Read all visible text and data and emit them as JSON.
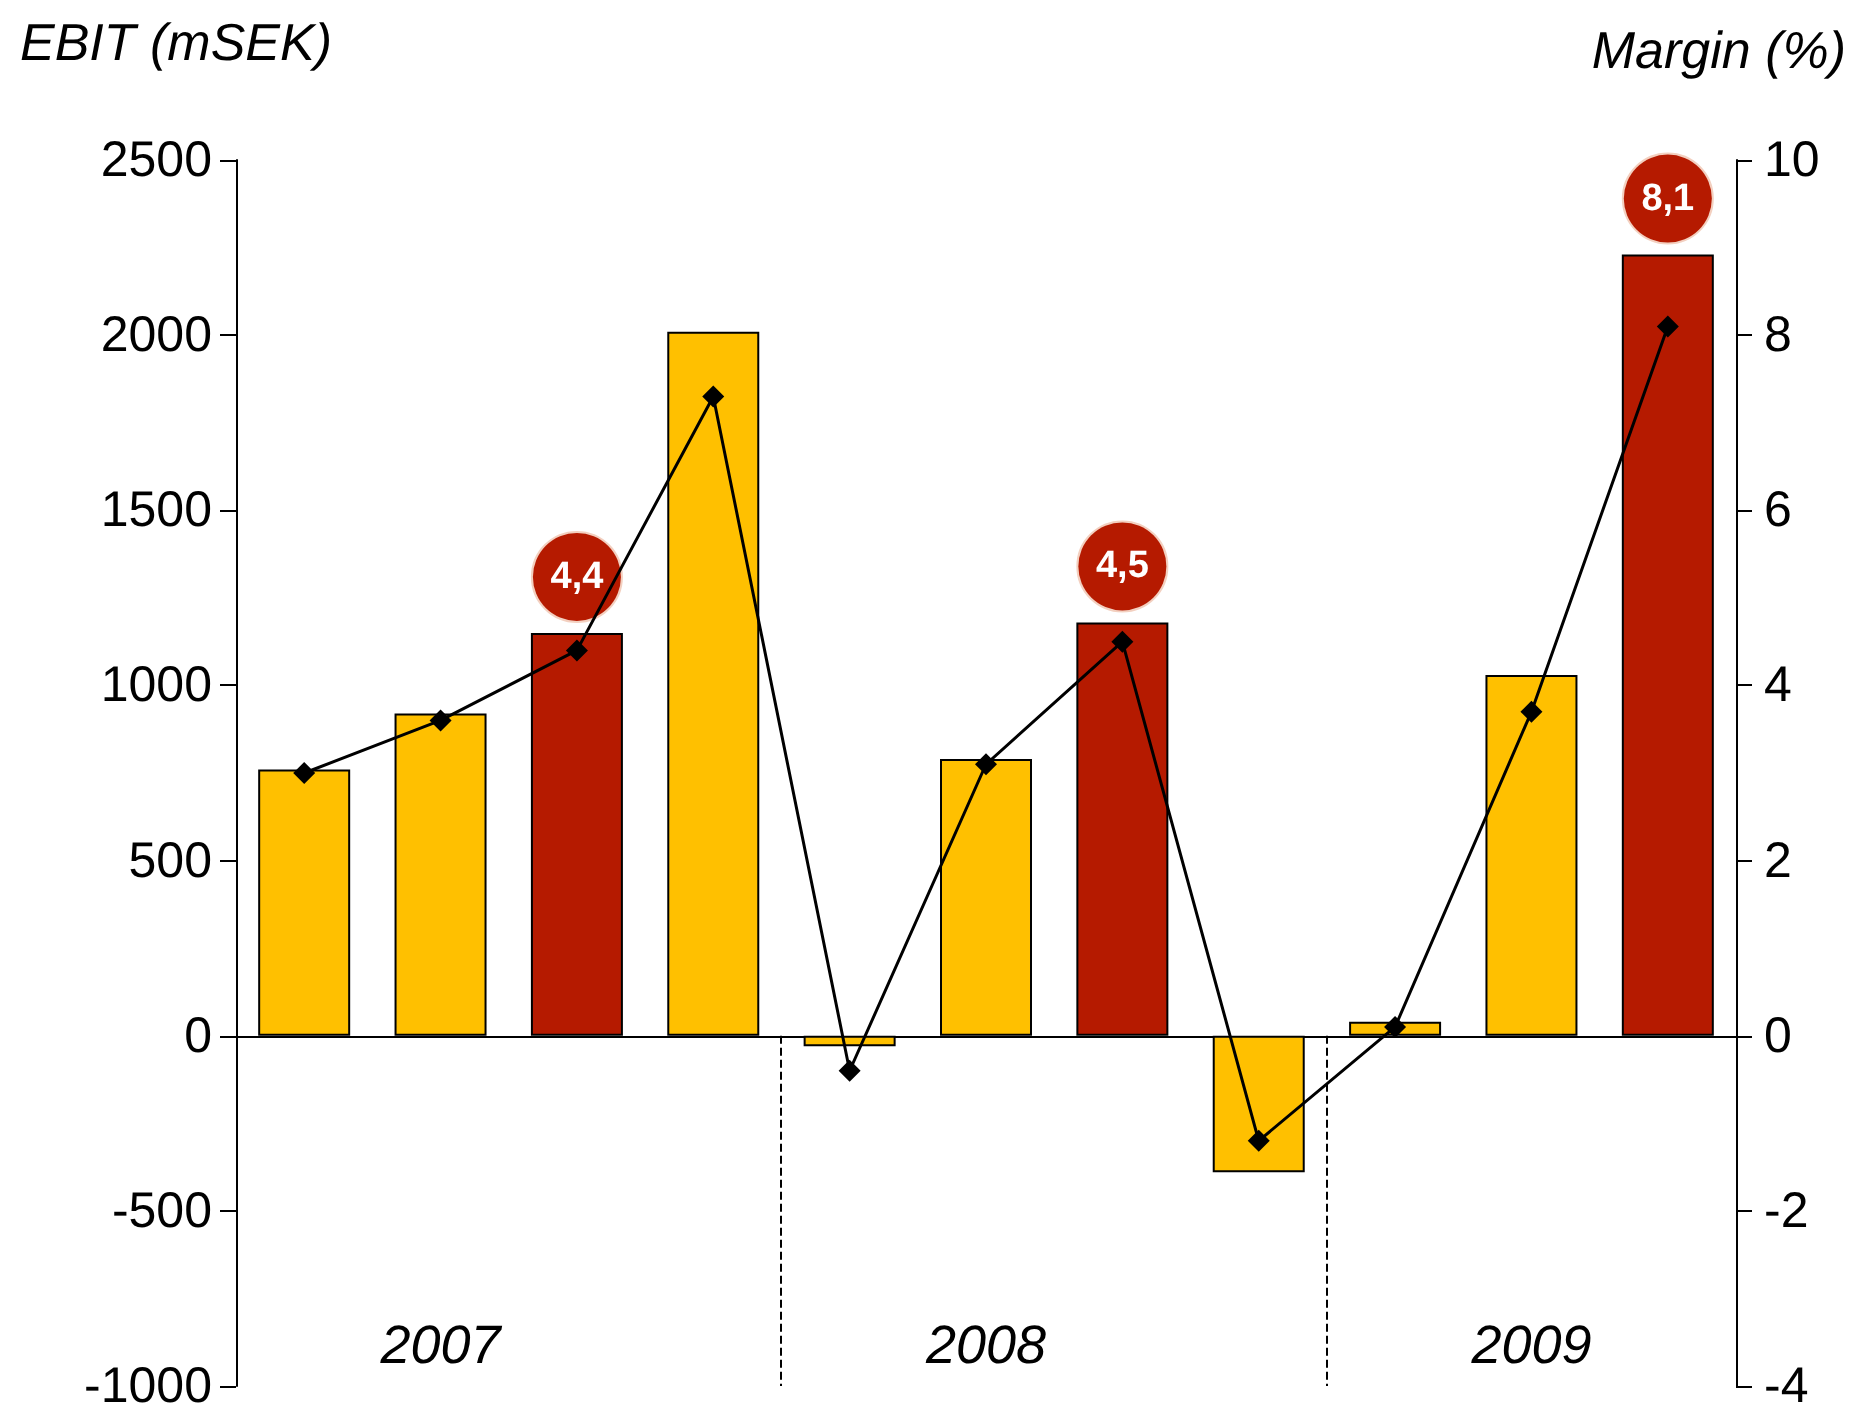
{
  "chart_data": {
    "type": "bar",
    "ylabel": "EBIT (mSEK)",
    "y2label": "Margin (%)",
    "categories": [
      null,
      "2007",
      null,
      null,
      null,
      "2008",
      null,
      null,
      null,
      "2009",
      null
    ],
    "ylim": [
      -1000,
      2500
    ],
    "yticks": [
      -1000,
      -500,
      0,
      500,
      1000,
      1500,
      2000,
      2500
    ],
    "y2lim": [
      -4,
      10
    ],
    "y2ticks": [
      -4,
      -2,
      0,
      2,
      4,
      6,
      8,
      10
    ],
    "series": [
      {
        "colors": [
          "#ffc000",
          "#ffc000",
          "#b51a00",
          "#ffc000",
          "#ffc000",
          "#ffc000",
          "#b51a00",
          "#ffc000",
          "#ffc000",
          "#ffc000",
          "#b51a00"
        ],
        "values": [
          760,
          920,
          1150,
          2010,
          -30,
          790,
          1180,
          -390,
          40,
          1030,
          2230
        ]
      },
      {
        "type": "line",
        "axis": "y2",
        "color": "#000000",
        "marker": "diamond",
        "values": [
          3.0,
          3.6,
          4.4,
          7.3,
          -0.4,
          3.1,
          4.5,
          -1.2,
          0.1,
          3.7,
          8.1
        ],
        "value_labels": [
          null,
          null,
          "4,4",
          null,
          null,
          null,
          "4,5",
          null,
          null,
          null,
          "8,1"
        ]
      }
    ]
  }
}
